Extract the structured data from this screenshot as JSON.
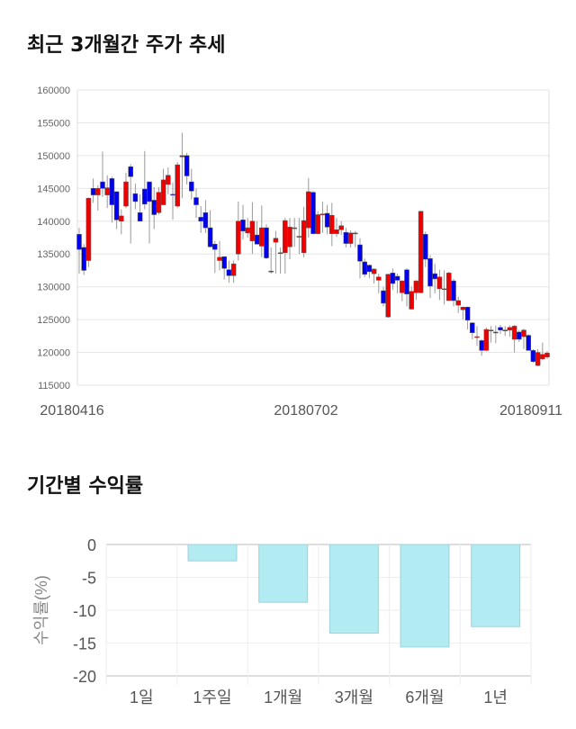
{
  "titles": {
    "price_trend": "최근 3개월간 주가 추세",
    "period_return": "기간별 수익률"
  },
  "colors": {
    "up": "#ee0000",
    "down": "#0000ee",
    "bar": "#b2ebf2",
    "bar_border": "#9fd3da"
  },
  "chart_data": [
    {
      "type": "candlestick",
      "title": "최근 3개월간 주가 추세",
      "ylim": [
        115000,
        160000
      ],
      "yticks": [
        160000,
        155000,
        150000,
        145000,
        140000,
        135000,
        130000,
        125000,
        120000,
        115000
      ],
      "xtick_labels": [
        "20180416",
        "20180702",
        "20180911"
      ],
      "grid": true,
      "ohlc_thousands": [
        [
          138,
          139,
          132,
          135.7
        ],
        [
          136,
          136.5,
          131.8,
          132.5
        ],
        [
          134,
          143.6,
          133,
          143.5
        ],
        [
          145,
          146.5,
          142.8,
          144
        ],
        [
          144,
          145.5,
          141.6,
          145
        ],
        [
          146,
          150.6,
          143.7,
          145
        ],
        [
          144,
          147,
          142,
          145.1
        ],
        [
          146.5,
          146.8,
          139.8,
          142.5
        ],
        [
          144.5,
          144.5,
          138.8,
          140.2
        ],
        [
          140,
          141.8,
          138,
          140.8
        ],
        [
          142.3,
          147.4,
          142,
          146
        ],
        [
          148.3,
          148.7,
          136.6,
          146.8
        ],
        [
          144.2,
          145.7,
          141.8,
          143
        ],
        [
          141.3,
          144.1,
          140,
          140
        ],
        [
          144.9,
          150.7,
          141.8,
          142.6
        ],
        [
          146,
          146,
          136.6,
          143
        ],
        [
          143.2,
          145.2,
          138.8,
          141
        ],
        [
          141.3,
          145.2,
          141,
          144.4
        ],
        [
          142.5,
          148,
          142.5,
          146.3
        ],
        [
          145.6,
          148.2,
          144.1,
          147
        ],
        [
          144.1,
          145.9,
          140.2,
          144
        ],
        [
          142.3,
          149,
          142,
          148.6
        ],
        [
          149.8,
          153.5,
          143.5,
          150
        ],
        [
          150,
          150.4,
          145.6,
          146.9
        ],
        [
          146,
          148,
          143.3,
          144.6
        ],
        [
          143.6,
          145,
          140.5,
          142.5
        ],
        [
          140.6,
          142.3,
          138.2,
          140
        ],
        [
          141.3,
          143.2,
          138.2,
          139
        ],
        [
          139,
          141.7,
          136,
          136.1
        ],
        [
          136.5,
          137,
          132.1,
          135.7
        ],
        [
          134,
          137,
          132.5,
          134.5
        ],
        [
          134.6,
          134.6,
          131.1,
          132.8
        ],
        [
          132.6,
          134,
          130.6,
          131.7
        ],
        [
          131.7,
          134,
          130.6,
          133.5
        ],
        [
          135,
          143,
          134,
          140
        ],
        [
          140.2,
          142.5,
          137.2,
          138.5
        ],
        [
          138.2,
          140.5,
          137.5,
          139
        ],
        [
          137,
          142.9,
          135,
          140
        ],
        [
          137.9,
          140,
          136.5,
          136.5
        ],
        [
          136.2,
          142.4,
          134.5,
          139
        ],
        [
          139,
          139.5,
          134.2,
          134.4
        ],
        [
          132.4,
          136,
          132,
          132.4
        ],
        [
          136.8,
          138.5,
          132,
          137.4
        ],
        [
          135.2,
          136,
          132,
          135.2
        ],
        [
          135.2,
          140.5,
          132,
          140.1
        ],
        [
          136.1,
          140.5,
          134.2,
          139.1
        ],
        [
          139,
          140.5,
          136.1,
          139
        ],
        [
          137.7,
          140.5,
          135,
          137.7
        ],
        [
          135.2,
          142.2,
          134.5,
          140.1
        ],
        [
          139,
          146.6,
          137.5,
          144.5
        ],
        [
          144.4,
          144.6,
          138,
          138.1
        ],
        [
          138.1,
          141.5,
          138,
          141
        ],
        [
          141.1,
          143,
          138.2,
          141.1
        ],
        [
          141.2,
          142.5,
          138,
          139.1
        ],
        [
          138.1,
          142.8,
          136.2,
          140.9
        ],
        [
          138.1,
          140.5,
          137.6,
          138.7
        ],
        [
          138.7,
          140,
          137.9,
          139.3
        ],
        [
          138.3,
          139,
          136,
          136.6
        ],
        [
          136.6,
          138.6,
          136,
          138.2
        ],
        [
          138.2,
          138.5,
          136,
          138.2
        ],
        [
          136.4,
          137.4,
          131.3,
          133.9
        ],
        [
          133.8,
          134.3,
          131.5,
          131.9
        ],
        [
          133.3,
          133.4,
          131.3,
          132.3
        ],
        [
          132,
          132.8,
          130.5,
          132.7
        ],
        [
          131,
          132,
          129,
          131.5
        ],
        [
          129.4,
          130,
          127,
          127.5
        ],
        [
          125.4,
          132,
          125.3,
          131.9
        ],
        [
          132.1,
          132.8,
          129.5,
          130.5
        ],
        [
          131.6,
          132,
          129,
          131
        ],
        [
          129.1,
          131,
          127.8,
          130.9
        ],
        [
          132.6,
          132.8,
          127,
          128.9
        ],
        [
          126.6,
          130,
          126.5,
          129.3
        ],
        [
          129.1,
          131,
          128,
          130.9
        ],
        [
          129.1,
          141.6,
          129,
          141.5
        ],
        [
          138,
          138.4,
          133,
          134.2
        ],
        [
          134.3,
          134.8,
          128.3,
          130.1
        ],
        [
          132,
          133.5,
          129,
          131.2
        ],
        [
          129.7,
          132.6,
          128,
          131.5
        ],
        [
          129.7,
          132.5,
          127.3,
          129.7
        ],
        [
          127.9,
          132.3,
          127.8,
          132.1
        ],
        [
          130.9,
          131.2,
          127,
          127.9
        ],
        [
          127.2,
          128.5,
          126,
          127.9
        ],
        [
          126.5,
          127,
          125,
          126.9
        ],
        [
          126.9,
          127,
          123.5,
          124.9
        ],
        [
          124.5,
          124.6,
          122,
          123
        ],
        [
          122.4,
          124,
          121,
          122.4
        ],
        [
          121.8,
          122,
          119.5,
          120.3
        ],
        [
          120.3,
          123.8,
          120.2,
          123.5
        ],
        [
          123.4,
          124,
          121.5,
          123.4
        ],
        [
          123.1,
          124.1,
          121.4,
          123.1
        ],
        [
          123.8,
          124.2,
          122.8,
          123.4
        ],
        [
          123.4,
          124,
          122.5,
          123.4
        ],
        [
          123.4,
          124.1,
          122.4,
          123.8
        ],
        [
          122,
          124.2,
          120,
          124
        ],
        [
          123.1,
          123.4,
          121.6,
          122
        ],
        [
          122.4,
          123.6,
          120.5,
          123.4
        ],
        [
          122.6,
          122.8,
          120.3,
          120.3
        ],
        [
          120.3,
          120.5,
          118.4,
          118.6
        ],
        [
          118,
          120.5,
          117.9,
          120
        ],
        [
          119,
          121.5,
          118.8,
          119.7
        ],
        [
          119.3,
          120.2,
          119,
          119.9
        ]
      ]
    },
    {
      "type": "bar",
      "title": "기간별 수익률",
      "categories": [
        "1일",
        "1주일",
        "1개월",
        "3개월",
        "6개월",
        "1년"
      ],
      "values": [
        0,
        -2.5,
        -8.8,
        -13.5,
        -15.6,
        -12.5
      ],
      "ylabel": "수익률(%)",
      "ylim": [
        -20,
        0
      ],
      "yticks": [
        "0",
        "-5",
        "-10",
        "-15",
        "-20"
      ],
      "grid": true
    }
  ]
}
